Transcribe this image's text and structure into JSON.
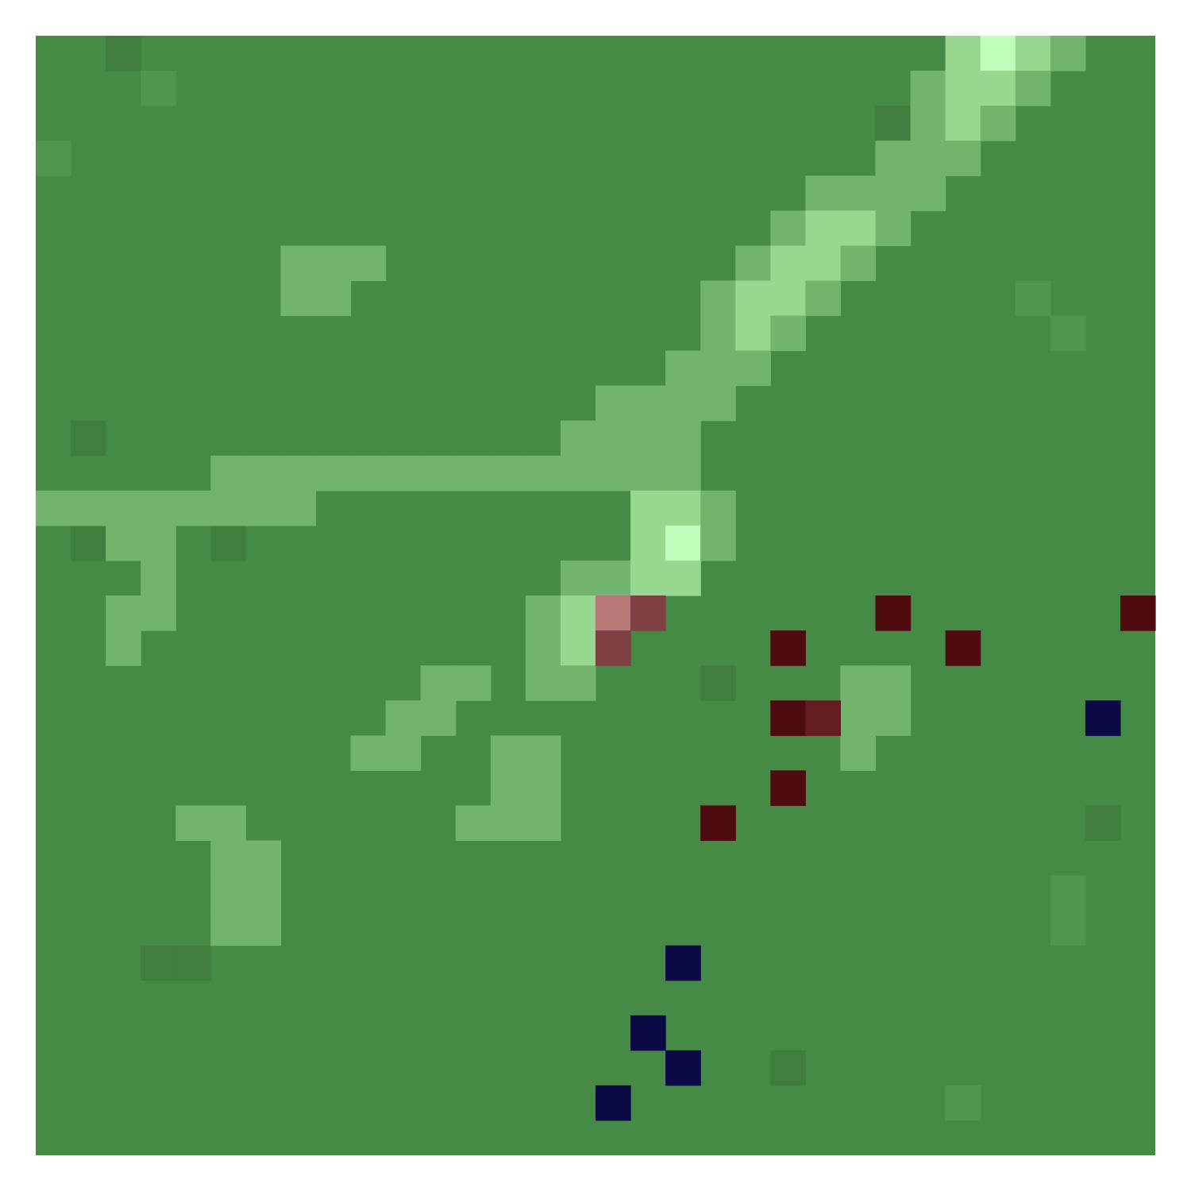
{
  "image": {
    "kind": "pixelated-aerial-land-cover-raster",
    "grid": {
      "columns": 32,
      "rows": 32
    },
    "palette": {
      "background": "#ffffff",
      "field_dark": "#3f7f3d",
      "field_mid": "#468b45",
      "field_light": "#4f964e",
      "path_light": "#71b46d",
      "path_pale": "#96d890",
      "path_brightest": "#bfffbb",
      "marker_red": "#4e0c10",
      "marker_red_medium": "#631c1f",
      "marker_red_light": "#7f4043",
      "marker_pink": "#b87878",
      "marker_navy": "#0c0a45"
    },
    "base_field": {
      "default_color_key": "field_mid",
      "variations": [
        {
          "row": 0,
          "col": 2,
          "color_key": "field_dark"
        },
        {
          "row": 1,
          "col": 3,
          "color_key": "field_light"
        },
        {
          "row": 2,
          "col": 24,
          "color_key": "field_dark"
        },
        {
          "row": 3,
          "col": 0,
          "color_key": "field_light"
        },
        {
          "row": 7,
          "col": 28,
          "color_key": "field_light"
        },
        {
          "row": 8,
          "col": 29,
          "color_key": "field_light"
        },
        {
          "row": 11,
          "col": 1,
          "color_key": "field_dark"
        },
        {
          "row": 14,
          "col": 1,
          "color_key": "field_dark"
        },
        {
          "row": 14,
          "col": 5,
          "color_key": "field_dark"
        },
        {
          "row": 18,
          "col": 19,
          "color_key": "field_dark"
        },
        {
          "row": 22,
          "col": 30,
          "color_key": "field_dark"
        },
        {
          "row": 24,
          "col": 29,
          "color_key": "field_light"
        },
        {
          "row": 25,
          "col": 29,
          "color_key": "field_light"
        },
        {
          "row": 26,
          "col": 3,
          "color_key": "field_dark"
        },
        {
          "row": 26,
          "col": 4,
          "color_key": "field_dark"
        },
        {
          "row": 29,
          "col": 21,
          "color_key": "field_dark"
        },
        {
          "row": 30,
          "col": 26,
          "color_key": "field_light"
        }
      ]
    },
    "light_paths": [
      {
        "row": 0,
        "col": 26,
        "color_key": "path_pale"
      },
      {
        "row": 0,
        "col": 27,
        "color_key": "path_brightest"
      },
      {
        "row": 0,
        "col": 28,
        "color_key": "path_pale"
      },
      {
        "row": 0,
        "col": 29,
        "color_key": "path_light"
      },
      {
        "row": 1,
        "col": 25,
        "color_key": "path_light"
      },
      {
        "row": 1,
        "col": 26,
        "color_key": "path_pale"
      },
      {
        "row": 1,
        "col": 27,
        "color_key": "path_pale"
      },
      {
        "row": 1,
        "col": 28,
        "color_key": "path_light"
      },
      {
        "row": 2,
        "col": 25,
        "color_key": "path_light"
      },
      {
        "row": 2,
        "col": 26,
        "color_key": "path_pale"
      },
      {
        "row": 2,
        "col": 27,
        "color_key": "path_light"
      },
      {
        "row": 3,
        "col": 24,
        "color_key": "path_light"
      },
      {
        "row": 3,
        "col": 25,
        "color_key": "path_light"
      },
      {
        "row": 3,
        "col": 26,
        "color_key": "path_light"
      },
      {
        "row": 4,
        "col": 22,
        "color_key": "path_light"
      },
      {
        "row": 4,
        "col": 23,
        "color_key": "path_light"
      },
      {
        "row": 4,
        "col": 24,
        "color_key": "path_light"
      },
      {
        "row": 4,
        "col": 25,
        "color_key": "path_light"
      },
      {
        "row": 5,
        "col": 21,
        "color_key": "path_light"
      },
      {
        "row": 5,
        "col": 22,
        "color_key": "path_pale"
      },
      {
        "row": 5,
        "col": 23,
        "color_key": "path_pale"
      },
      {
        "row": 5,
        "col": 24,
        "color_key": "path_light"
      },
      {
        "row": 6,
        "col": 7,
        "color_key": "path_light"
      },
      {
        "row": 6,
        "col": 8,
        "color_key": "path_light"
      },
      {
        "row": 6,
        "col": 9,
        "color_key": "path_light"
      },
      {
        "row": 6,
        "col": 20,
        "color_key": "path_light"
      },
      {
        "row": 6,
        "col": 21,
        "color_key": "path_pale"
      },
      {
        "row": 6,
        "col": 22,
        "color_key": "path_pale"
      },
      {
        "row": 6,
        "col": 23,
        "color_key": "path_light"
      },
      {
        "row": 7,
        "col": 7,
        "color_key": "path_light"
      },
      {
        "row": 7,
        "col": 8,
        "color_key": "path_light"
      },
      {
        "row": 7,
        "col": 19,
        "color_key": "path_light"
      },
      {
        "row": 7,
        "col": 20,
        "color_key": "path_pale"
      },
      {
        "row": 7,
        "col": 21,
        "color_key": "path_pale"
      },
      {
        "row": 7,
        "col": 22,
        "color_key": "path_light"
      },
      {
        "row": 8,
        "col": 19,
        "color_key": "path_light"
      },
      {
        "row": 8,
        "col": 20,
        "color_key": "path_pale"
      },
      {
        "row": 8,
        "col": 21,
        "color_key": "path_light"
      },
      {
        "row": 9,
        "col": 18,
        "color_key": "path_light"
      },
      {
        "row": 9,
        "col": 19,
        "color_key": "path_light"
      },
      {
        "row": 9,
        "col": 20,
        "color_key": "path_light"
      },
      {
        "row": 10,
        "col": 16,
        "color_key": "path_light"
      },
      {
        "row": 10,
        "col": 17,
        "color_key": "path_light"
      },
      {
        "row": 10,
        "col": 18,
        "color_key": "path_light"
      },
      {
        "row": 10,
        "col": 19,
        "color_key": "path_light"
      },
      {
        "row": 11,
        "col": 15,
        "color_key": "path_light"
      },
      {
        "row": 11,
        "col": 16,
        "color_key": "path_light"
      },
      {
        "row": 11,
        "col": 17,
        "color_key": "path_light"
      },
      {
        "row": 11,
        "col": 18,
        "color_key": "path_light"
      },
      {
        "row": 12,
        "col": 5,
        "color_key": "path_light"
      },
      {
        "row": 12,
        "col": 6,
        "color_key": "path_light"
      },
      {
        "row": 12,
        "col": 7,
        "color_key": "path_light"
      },
      {
        "row": 12,
        "col": 8,
        "color_key": "path_light"
      },
      {
        "row": 12,
        "col": 9,
        "color_key": "path_light"
      },
      {
        "row": 12,
        "col": 10,
        "color_key": "path_light"
      },
      {
        "row": 12,
        "col": 11,
        "color_key": "path_light"
      },
      {
        "row": 12,
        "col": 12,
        "color_key": "path_light"
      },
      {
        "row": 12,
        "col": 13,
        "color_key": "path_light"
      },
      {
        "row": 12,
        "col": 14,
        "color_key": "path_light"
      },
      {
        "row": 12,
        "col": 15,
        "color_key": "path_light"
      },
      {
        "row": 12,
        "col": 16,
        "color_key": "path_light"
      },
      {
        "row": 12,
        "col": 17,
        "color_key": "path_light"
      },
      {
        "row": 12,
        "col": 18,
        "color_key": "path_light"
      },
      {
        "row": 13,
        "col": 0,
        "color_key": "path_light"
      },
      {
        "row": 13,
        "col": 1,
        "color_key": "path_light"
      },
      {
        "row": 13,
        "col": 2,
        "color_key": "path_light"
      },
      {
        "row": 13,
        "col": 3,
        "color_key": "path_light"
      },
      {
        "row": 13,
        "col": 4,
        "color_key": "path_light"
      },
      {
        "row": 13,
        "col": 5,
        "color_key": "path_light"
      },
      {
        "row": 13,
        "col": 6,
        "color_key": "path_light"
      },
      {
        "row": 13,
        "col": 7,
        "color_key": "path_light"
      },
      {
        "row": 13,
        "col": 17,
        "color_key": "path_pale"
      },
      {
        "row": 13,
        "col": 18,
        "color_key": "path_pale"
      },
      {
        "row": 13,
        "col": 19,
        "color_key": "path_light"
      },
      {
        "row": 14,
        "col": 2,
        "color_key": "path_light"
      },
      {
        "row": 14,
        "col": 3,
        "color_key": "path_light"
      },
      {
        "row": 14,
        "col": 17,
        "color_key": "path_pale"
      },
      {
        "row": 14,
        "col": 18,
        "color_key": "path_brightest"
      },
      {
        "row": 14,
        "col": 19,
        "color_key": "path_light"
      },
      {
        "row": 15,
        "col": 3,
        "color_key": "path_light"
      },
      {
        "row": 15,
        "col": 15,
        "color_key": "path_light"
      },
      {
        "row": 15,
        "col": 16,
        "color_key": "path_light"
      },
      {
        "row": 15,
        "col": 17,
        "color_key": "path_pale"
      },
      {
        "row": 15,
        "col": 18,
        "color_key": "path_pale"
      },
      {
        "row": 16,
        "col": 2,
        "color_key": "path_light"
      },
      {
        "row": 16,
        "col": 3,
        "color_key": "path_light"
      },
      {
        "row": 16,
        "col": 14,
        "color_key": "path_light"
      },
      {
        "row": 16,
        "col": 15,
        "color_key": "path_pale"
      },
      {
        "row": 17,
        "col": 2,
        "color_key": "path_light"
      },
      {
        "row": 17,
        "col": 14,
        "color_key": "path_light"
      },
      {
        "row": 17,
        "col": 15,
        "color_key": "path_pale"
      },
      {
        "row": 18,
        "col": 11,
        "color_key": "path_light"
      },
      {
        "row": 18,
        "col": 12,
        "color_key": "path_light"
      },
      {
        "row": 18,
        "col": 14,
        "color_key": "path_light"
      },
      {
        "row": 18,
        "col": 15,
        "color_key": "path_light"
      },
      {
        "row": 18,
        "col": 23,
        "color_key": "path_light"
      },
      {
        "row": 18,
        "col": 24,
        "color_key": "path_light"
      },
      {
        "row": 19,
        "col": 10,
        "color_key": "path_light"
      },
      {
        "row": 19,
        "col": 11,
        "color_key": "path_light"
      },
      {
        "row": 19,
        "col": 23,
        "color_key": "path_light"
      },
      {
        "row": 19,
        "col": 24,
        "color_key": "path_light"
      },
      {
        "row": 20,
        "col": 9,
        "color_key": "path_light"
      },
      {
        "row": 20,
        "col": 10,
        "color_key": "path_light"
      },
      {
        "row": 20,
        "col": 13,
        "color_key": "path_light"
      },
      {
        "row": 20,
        "col": 14,
        "color_key": "path_light"
      },
      {
        "row": 20,
        "col": 23,
        "color_key": "path_light"
      },
      {
        "row": 21,
        "col": 13,
        "color_key": "path_light"
      },
      {
        "row": 21,
        "col": 14,
        "color_key": "path_light"
      },
      {
        "row": 22,
        "col": 4,
        "color_key": "path_light"
      },
      {
        "row": 22,
        "col": 5,
        "color_key": "path_light"
      },
      {
        "row": 22,
        "col": 12,
        "color_key": "path_light"
      },
      {
        "row": 22,
        "col": 13,
        "color_key": "path_light"
      },
      {
        "row": 22,
        "col": 14,
        "color_key": "path_light"
      },
      {
        "row": 23,
        "col": 5,
        "color_key": "path_light"
      },
      {
        "row": 23,
        "col": 6,
        "color_key": "path_light"
      },
      {
        "row": 24,
        "col": 5,
        "color_key": "path_light"
      },
      {
        "row": 24,
        "col": 6,
        "color_key": "path_light"
      },
      {
        "row": 25,
        "col": 5,
        "color_key": "path_light"
      },
      {
        "row": 25,
        "col": 6,
        "color_key": "path_light"
      }
    ],
    "markers": [
      {
        "row": 16,
        "col": 16,
        "color_key": "marker_pink",
        "category": "red"
      },
      {
        "row": 16,
        "col": 17,
        "color_key": "marker_red_light",
        "category": "red"
      },
      {
        "row": 17,
        "col": 16,
        "color_key": "marker_red_light",
        "category": "red"
      },
      {
        "row": 16,
        "col": 24,
        "color_key": "marker_red",
        "category": "red"
      },
      {
        "row": 16,
        "col": 31,
        "color_key": "marker_red",
        "category": "red"
      },
      {
        "row": 17,
        "col": 21,
        "color_key": "marker_red",
        "category": "red"
      },
      {
        "row": 17,
        "col": 26,
        "color_key": "marker_red",
        "category": "red"
      },
      {
        "row": 19,
        "col": 21,
        "color_key": "marker_red",
        "category": "red"
      },
      {
        "row": 19,
        "col": 22,
        "color_key": "marker_red_medium",
        "category": "red"
      },
      {
        "row": 21,
        "col": 21,
        "color_key": "marker_red",
        "category": "red"
      },
      {
        "row": 22,
        "col": 19,
        "color_key": "marker_red",
        "category": "red"
      },
      {
        "row": 19,
        "col": 30,
        "color_key": "marker_navy",
        "category": "blue"
      },
      {
        "row": 26,
        "col": 18,
        "color_key": "marker_navy",
        "category": "blue"
      },
      {
        "row": 28,
        "col": 17,
        "color_key": "marker_navy",
        "category": "blue"
      },
      {
        "row": 29,
        "col": 18,
        "color_key": "marker_navy",
        "category": "blue"
      },
      {
        "row": 30,
        "col": 16,
        "color_key": "marker_navy",
        "category": "blue"
      }
    ]
  }
}
